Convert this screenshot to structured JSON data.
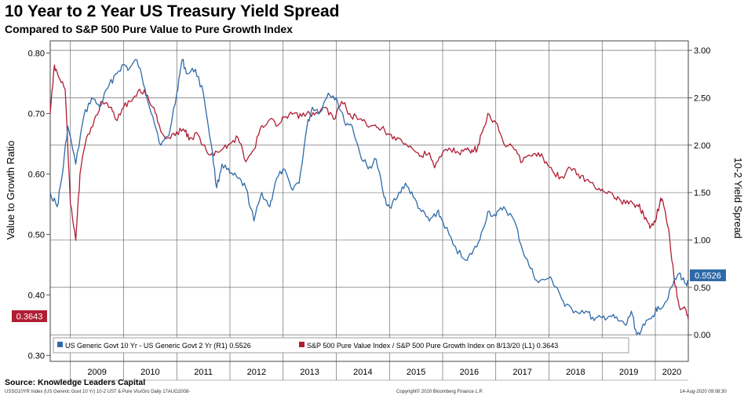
{
  "chart_data": {
    "type": "line",
    "title": "10 Year to 2 Year US Treasury Yield Spread",
    "subtitle": "Compared to S&P 500 Pure Value to Pure Growth Index",
    "ylabel_left": "Value to Growth Ratio",
    "ylabel_right": "10-2 Yield Spread",
    "ylim_left": [
      0.29,
      0.82
    ],
    "ylim_right": [
      -0.28,
      3.1
    ],
    "left_ticks": [
      "0.30",
      "0.40",
      "0.50",
      "0.60",
      "0.70",
      "0.80"
    ],
    "right_ticks": [
      "0.00",
      "0.50",
      "1.00",
      "1.50",
      "2.00",
      "2.50",
      "3.00"
    ],
    "x_range": [
      2008.62,
      2020.62
    ],
    "x_tick_labels": [
      "2009",
      "2010",
      "2011",
      "2012",
      "2013",
      "2014",
      "2015",
      "2016",
      "2017",
      "2018",
      "2019",
      "2020"
    ],
    "grid": true,
    "legend_position": "bottom-left",
    "series": [
      {
        "name": "US Generic Govt 10 Yr - US Generic Govt 2 Yr (R1) 0.5526",
        "axis": "right",
        "color": "#2e6aa8",
        "last_value_label": "0.5526",
        "x": [
          2008.62,
          2008.75,
          2008.85,
          2008.95,
          2009.1,
          2009.25,
          2009.4,
          2009.55,
          2009.7,
          2009.85,
          2010.0,
          2010.1,
          2010.25,
          2010.4,
          2010.55,
          2010.7,
          2010.85,
          2011.0,
          2011.1,
          2011.2,
          2011.35,
          2011.5,
          2011.65,
          2011.75,
          2011.85,
          2012.0,
          2012.15,
          2012.3,
          2012.45,
          2012.6,
          2012.75,
          2012.85,
          2013.0,
          2013.15,
          2013.3,
          2013.45,
          2013.55,
          2013.7,
          2013.85,
          2014.0,
          2014.15,
          2014.3,
          2014.45,
          2014.6,
          2014.75,
          2014.9,
          2015.0,
          2015.15,
          2015.3,
          2015.45,
          2015.6,
          2015.75,
          2015.9,
          2016.0,
          2016.2,
          2016.4,
          2016.55,
          2016.7,
          2016.85,
          2017.0,
          2017.15,
          2017.35,
          2017.5,
          2017.65,
          2017.8,
          2018.0,
          2018.15,
          2018.3,
          2018.5,
          2018.7,
          2018.85,
          2019.0,
          2019.15,
          2019.3,
          2019.45,
          2019.55,
          2019.65,
          2019.8,
          2019.95,
          2020.05,
          2020.15,
          2020.3,
          2020.45,
          2020.55,
          2020.62
        ],
        "y": [
          1.5,
          1.35,
          1.7,
          2.2,
          1.8,
          2.3,
          2.5,
          2.4,
          2.6,
          2.75,
          2.85,
          2.8,
          2.9,
          2.6,
          2.3,
          2.0,
          2.1,
          2.55,
          2.9,
          2.75,
          2.8,
          2.55,
          2.0,
          1.55,
          1.8,
          1.7,
          1.65,
          1.55,
          1.2,
          1.5,
          1.35,
          1.6,
          1.75,
          1.55,
          1.6,
          2.2,
          2.4,
          2.35,
          2.55,
          2.5,
          2.25,
          2.2,
          1.9,
          1.75,
          1.85,
          1.45,
          1.35,
          1.45,
          1.6,
          1.45,
          1.3,
          1.2,
          1.3,
          1.2,
          0.95,
          0.8,
          0.85,
          1.0,
          1.3,
          1.25,
          1.35,
          1.2,
          0.9,
          0.7,
          0.55,
          0.6,
          0.5,
          0.3,
          0.25,
          0.25,
          0.15,
          0.18,
          0.2,
          0.15,
          0.1,
          0.25,
          0.0,
          0.1,
          0.2,
          0.3,
          0.3,
          0.5,
          0.65,
          0.55,
          0.55
        ]
      },
      {
        "name": "S&P 500 Pure Value Index / S&P 500 Pure Growth Index on 8/13/20 (L1) 0.3643",
        "axis": "left",
        "color": "#b01e34",
        "last_value_label": "0.3643",
        "x": [
          2008.62,
          2008.7,
          2008.78,
          2008.9,
          2009.0,
          2009.1,
          2009.18,
          2009.3,
          2009.45,
          2009.6,
          2009.75,
          2009.85,
          2010.0,
          2010.15,
          2010.3,
          2010.45,
          2010.6,
          2010.7,
          2010.85,
          2011.0,
          2011.15,
          2011.25,
          2011.4,
          2011.55,
          2011.7,
          2011.85,
          2012.0,
          2012.15,
          2012.3,
          2012.45,
          2012.6,
          2012.75,
          2012.9,
          2013.05,
          2013.2,
          2013.35,
          2013.5,
          2013.65,
          2013.8,
          2013.95,
          2014.1,
          2014.25,
          2014.4,
          2014.55,
          2014.7,
          2014.85,
          2015.0,
          2015.15,
          2015.3,
          2015.45,
          2015.6,
          2015.75,
          2015.85,
          2016.0,
          2016.15,
          2016.3,
          2016.45,
          2016.55,
          2016.65,
          2016.75,
          2016.85,
          2017.0,
          2017.15,
          2017.35,
          2017.5,
          2017.65,
          2017.8,
          2017.95,
          2018.1,
          2018.25,
          2018.4,
          2018.55,
          2018.7,
          2018.85,
          2019.0,
          2019.15,
          2019.25,
          2019.35,
          2019.5,
          2019.6,
          2019.7,
          2019.8,
          2019.9,
          2020.0,
          2020.1,
          2020.15,
          2020.25,
          2020.35,
          2020.45,
          2020.55,
          2020.62
        ],
        "y": [
          0.7,
          0.78,
          0.76,
          0.74,
          0.55,
          0.49,
          0.6,
          0.66,
          0.69,
          0.72,
          0.71,
          0.69,
          0.71,
          0.72,
          0.74,
          0.73,
          0.7,
          0.67,
          0.66,
          0.67,
          0.67,
          0.66,
          0.665,
          0.64,
          0.63,
          0.64,
          0.65,
          0.66,
          0.62,
          0.64,
          0.68,
          0.69,
          0.68,
          0.695,
          0.7,
          0.695,
          0.7,
          0.7,
          0.71,
          0.69,
          0.72,
          0.7,
          0.69,
          0.685,
          0.68,
          0.675,
          0.665,
          0.66,
          0.65,
          0.64,
          0.63,
          0.635,
          0.61,
          0.635,
          0.64,
          0.635,
          0.64,
          0.64,
          0.64,
          0.67,
          0.7,
          0.685,
          0.65,
          0.64,
          0.62,
          0.63,
          0.635,
          0.62,
          0.6,
          0.595,
          0.61,
          0.6,
          0.59,
          0.58,
          0.575,
          0.57,
          0.56,
          0.555,
          0.55,
          0.55,
          0.55,
          0.525,
          0.51,
          0.52,
          0.56,
          0.55,
          0.51,
          0.43,
          0.38,
          0.38,
          0.36
        ]
      }
    ]
  },
  "footer": {
    "source": "Source: Knowledge Leaders Capital",
    "line_left": "USSG10YR Index (US Generic Govt 10 Yr) 10-2 UST & Pure Vlu/Gro  Daily 17AUG2008-",
    "line_center": "Copyright© 2020 Bloomberg Finance L.P.",
    "line_right": "14-Aug-2020 09:08:30"
  }
}
